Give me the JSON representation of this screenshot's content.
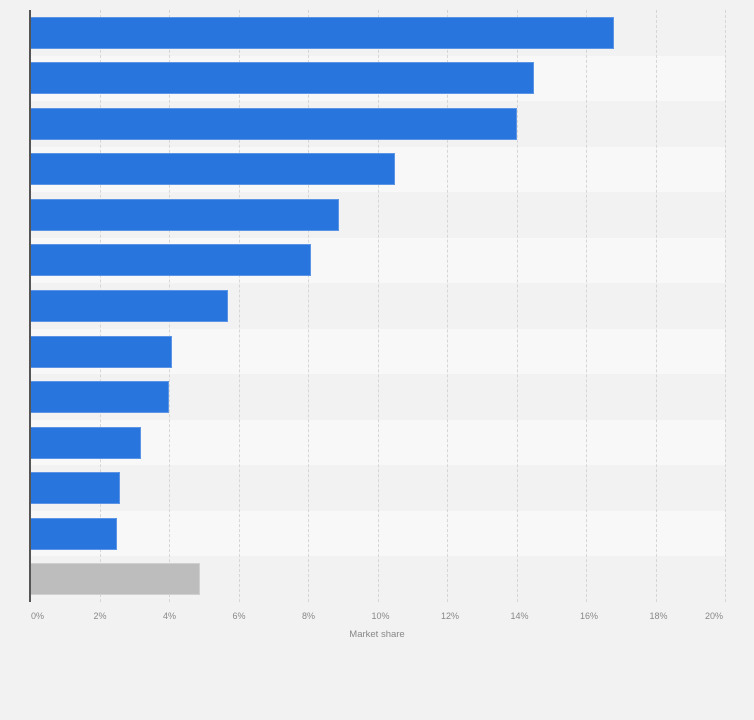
{
  "chart_data": {
    "type": "bar",
    "orientation": "horizontal",
    "title": "",
    "xlabel": "Market share",
    "ylabel": "",
    "xlim": [
      0,
      20
    ],
    "x_ticks": [
      "0%",
      "2%",
      "4%",
      "6%",
      "8%",
      "10%",
      "12%",
      "14%",
      "16%",
      "18%",
      "20%"
    ],
    "categories": [
      "",
      "",
      "",
      "",
      "",
      "",
      "",
      "",
      "",
      "",
      "",
      "",
      ""
    ],
    "values": [
      16.8,
      14.5,
      14.0,
      10.5,
      8.9,
      8.1,
      5.7,
      4.1,
      4.0,
      3.2,
      2.6,
      2.5,
      4.9
    ],
    "bar_colors": [
      "#2876dd",
      "#2876dd",
      "#2876dd",
      "#2876dd",
      "#2876dd",
      "#2876dd",
      "#2876dd",
      "#2876dd",
      "#2876dd",
      "#2876dd",
      "#2876dd",
      "#2876dd",
      "#bdbdbd"
    ],
    "grid": true,
    "legend": null
  },
  "colors": {
    "primary": "#2876dd",
    "other": "#bdbdbd",
    "band_a": "#f2f2f2",
    "band_b": "#f8f8f8"
  },
  "axis": {
    "x_label": "Market share"
  }
}
